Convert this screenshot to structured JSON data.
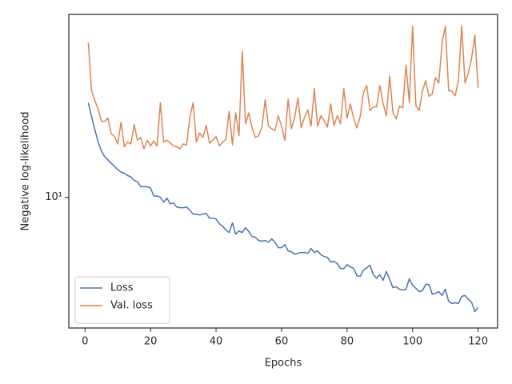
{
  "chart_data": {
    "type": "line",
    "xlabel": "Epochs",
    "ylabel": "Negative log-likelihood",
    "x": [
      1,
      2,
      3,
      4,
      5,
      6,
      7,
      8,
      9,
      10,
      11,
      12,
      13,
      14,
      15,
      16,
      17,
      18,
      19,
      20,
      21,
      22,
      23,
      24,
      25,
      26,
      27,
      28,
      29,
      30,
      31,
      32,
      33,
      34,
      35,
      36,
      37,
      38,
      39,
      40,
      41,
      42,
      43,
      44,
      45,
      46,
      47,
      48,
      49,
      50,
      51,
      52,
      53,
      54,
      55,
      56,
      57,
      58,
      59,
      60,
      61,
      62,
      63,
      64,
      65,
      66,
      67,
      68,
      69,
      70,
      71,
      72,
      73,
      74,
      75,
      76,
      77,
      78,
      79,
      80,
      81,
      82,
      83,
      84,
      85,
      86,
      87,
      88,
      89,
      90,
      91,
      92,
      93,
      94,
      95,
      96,
      97,
      98,
      99,
      100,
      101,
      102,
      103,
      104,
      105,
      106,
      107,
      108,
      109,
      110,
      111,
      112,
      113,
      114,
      115,
      116,
      117,
      118,
      119,
      120
    ],
    "series": [
      {
        "name": "Loss",
        "color": "#4c72b0",
        "values": [
          19.8,
          17.9,
          16.3,
          14.9,
          14.0,
          13.4,
          13.1,
          12.8,
          12.5,
          12.2,
          12.0,
          11.9,
          11.7,
          11.6,
          11.3,
          11.2,
          10.8,
          10.8,
          10.8,
          10.7,
          10.1,
          10.1,
          10.0,
          9.66,
          9.94,
          9.55,
          9.6,
          9.33,
          9.28,
          9.28,
          9.33,
          9.12,
          8.86,
          8.86,
          8.81,
          8.86,
          8.91,
          8.61,
          8.61,
          8.56,
          8.27,
          8.13,
          7.9,
          7.76,
          8.32,
          7.67,
          7.85,
          7.76,
          8.04,
          7.81,
          7.54,
          7.5,
          7.33,
          7.29,
          7.33,
          7.24,
          7.41,
          7.24,
          6.96,
          6.96,
          7.12,
          6.8,
          6.76,
          6.64,
          6.68,
          6.72,
          6.72,
          6.68,
          6.92,
          6.72,
          6.8,
          6.61,
          6.53,
          6.49,
          6.27,
          6.31,
          6.2,
          5.99,
          5.99,
          6.16,
          6.06,
          5.99,
          5.69,
          5.66,
          5.92,
          6.02,
          6.13,
          5.73,
          5.59,
          5.73,
          5.5,
          5.86,
          5.53,
          5.22,
          5.25,
          5.16,
          5.13,
          5.16,
          5.56,
          5.31,
          5.19,
          5.07,
          5.1,
          5.34,
          5.34,
          4.98,
          5.01,
          5.07,
          4.93,
          5.16,
          4.73,
          4.65,
          4.68,
          4.65,
          4.9,
          4.93,
          4.8,
          4.7,
          4.39,
          4.52
        ]
      },
      {
        "name": "Val. loss",
        "color": "#dd8452",
        "values": [
          30.5,
          21.6,
          20.1,
          18.9,
          17.3,
          17.3,
          17.7,
          15.8,
          15.5,
          14.7,
          17.2,
          14.4,
          14.9,
          14.7,
          16.9,
          15.1,
          15.4,
          14.2,
          15.1,
          14.5,
          15.0,
          14.5,
          19.8,
          14.9,
          15.1,
          14.8,
          14.5,
          14.4,
          14.2,
          14.7,
          14.6,
          17.8,
          19.8,
          14.9,
          15.9,
          15.4,
          16.8,
          14.8,
          15.1,
          15.5,
          14.5,
          14.9,
          15.2,
          18.6,
          14.6,
          18.4,
          15.6,
          28.7,
          17.0,
          18.4,
          16.5,
          15.4,
          15.6,
          16.6,
          20.2,
          16.7,
          16.4,
          16.2,
          18.0,
          16.7,
          15.1,
          20.3,
          16.4,
          17.8,
          20.5,
          16.5,
          17.8,
          18.8,
          16.7,
          21.9,
          16.7,
          18.0,
          17.4,
          16.6,
          19.6,
          16.8,
          18.0,
          17.0,
          21.9,
          17.7,
          19.6,
          17.7,
          16.5,
          17.9,
          21.3,
          22.4,
          18.7,
          19.2,
          19.2,
          22.4,
          19.7,
          18.0,
          24.0,
          18.4,
          17.6,
          19.3,
          19.1,
          25.9,
          19.8,
          34.3,
          19.4,
          18.7,
          21.5,
          23.2,
          20.7,
          21.1,
          23.7,
          22.8,
          30.5,
          34.4,
          21.6,
          21.5,
          20.8,
          23.3,
          34.4,
          22.8,
          24.5,
          27.2,
          32.2,
          22.0
        ]
      }
    ],
    "xlim": [
      -4.95,
      125.95
    ],
    "xticks": [
      0,
      20,
      40,
      60,
      80,
      100,
      120
    ],
    "ylim": [
      3.9,
      37.4
    ],
    "yticks": [
      {
        "value": 10,
        "label": "10¹"
      }
    ],
    "yscale": "log",
    "legend": "lower left"
  }
}
